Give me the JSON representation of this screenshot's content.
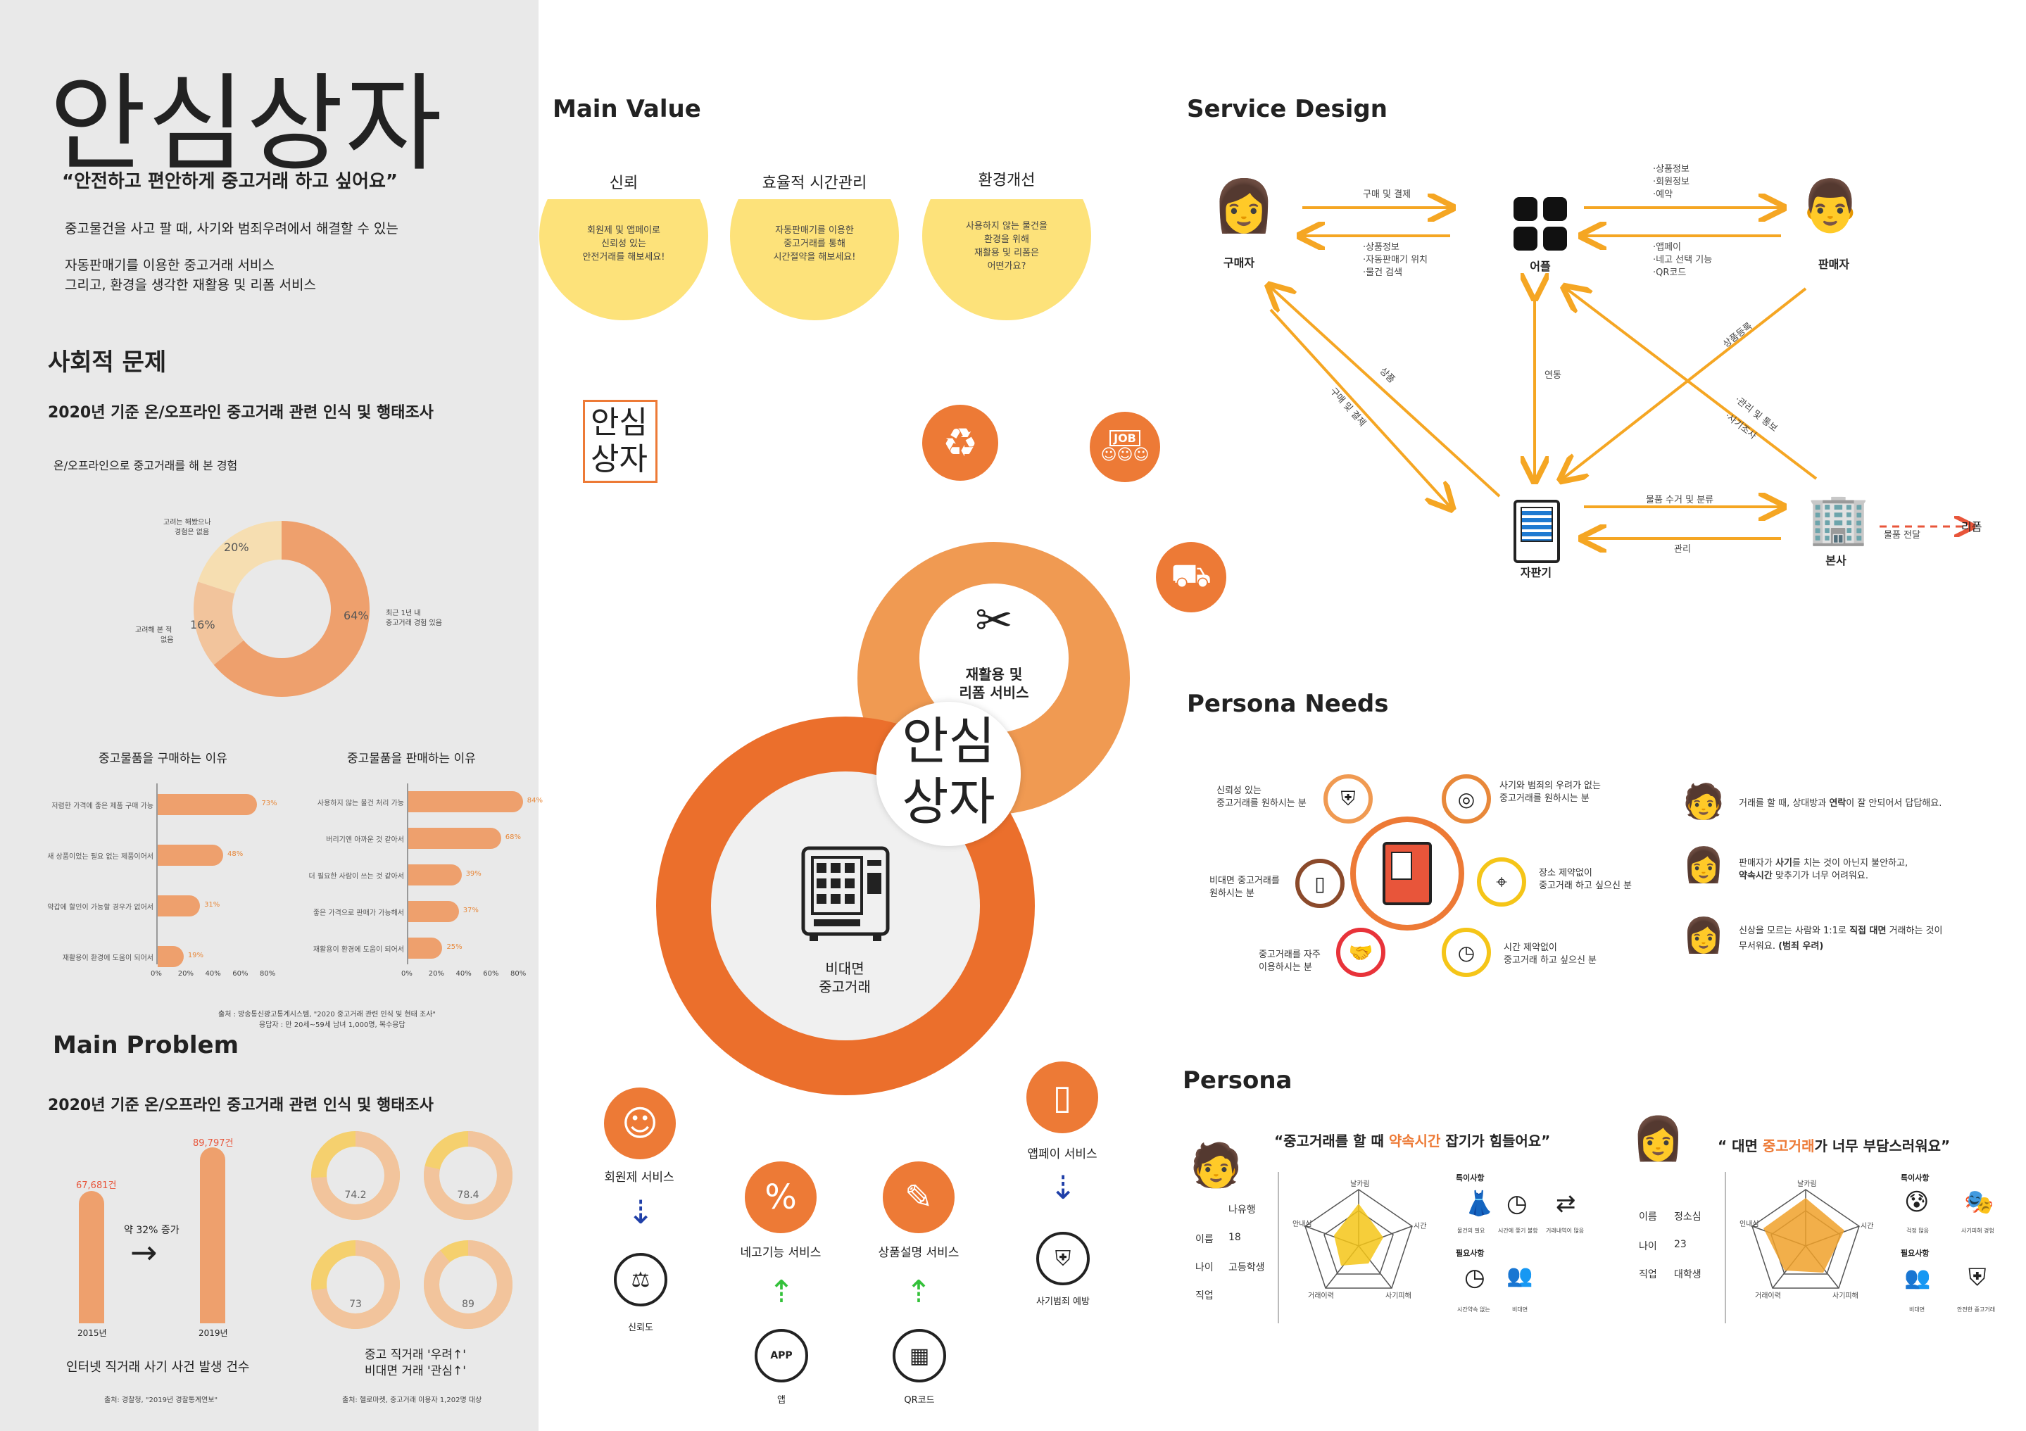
{
  "sidebar": {
    "title": "안심상자",
    "slogan": "“안전하고 편안하게 중고거래 하고 싶어요”",
    "desc1": "중고물건을 사고 팔 때, 사기와 범죄우려에서 해결할 수 있는",
    "desc2": "자동판매기를 이용한 중고거래 서비스",
    "desc3": "그리고,  환경을 생각한 재활용 및 리폼 서비스",
    "social_title": "사회적 문제",
    "survey_title": "2020년 기준 온/오프라인 중고거래 관련 인식 및 행태조사",
    "donut_title": "온/오프라인으로 중고거래를 해 본 경험",
    "donut": {
      "segments": [
        {
          "label": "최근 1년 내 중고거래 경험 있음",
          "value": 64,
          "text": "64%",
          "color": "#eea06d"
        },
        {
          "label": "고려해 본 적 없음",
          "value": 16,
          "text": "16%",
          "color": "#f2c49c"
        },
        {
          "label": "고려는 해봤으나 경험은 없음",
          "value": 20,
          "text": "20%",
          "color": "#f6deb1"
        }
      ],
      "label_right1": "최근 1년 내",
      "label_right2": "중고거래 경험 있음",
      "label_left1": "고려해 본 적",
      "label_left2": "없음",
      "label_top1": "고려는 해봤으나",
      "label_top2": "경험은 없음"
    },
    "buy_title": "중고물품을 구매하는 이유",
    "sell_title": "중고물품을 판매하는 이유",
    "axis_ticks": [
      "0%",
      "20%",
      "40%",
      "60%",
      "80%"
    ],
    "source1": "출처 : 방송통신광고통계시스템, \"2020 중고거래 관련 인식 및 현태 조사\"",
    "source2": "응답자 : 만 20세~59세 남녀 1,000명, 복수응답",
    "problem_title": "Main Problem",
    "problem_survey": "2020년 기준 온/오프라인 중고거래 관련 인식 및 행태조사",
    "fraud": {
      "y2015_value": "67,681건",
      "y2019_value": "89,797건",
      "y2015": "2015년",
      "y2019": "2019년",
      "increase": "약 32% 증가",
      "arrow": "→",
      "caption": "인터넷 직거래 사기 사건 발생 건수",
      "source": "출처: 경찰청, \"2019년 경찰통계연보\""
    },
    "concern": {
      "caption1": "중고 직거래 '우려↑'",
      "caption2": "비대면 거래 '관심↑'",
      "source": "출처: 헬로마켓, 중고거래 이용자 1,202명 대상",
      "values": [
        "74.2",
        "78.4",
        "73",
        "89"
      ]
    }
  },
  "chart_data": [
    {
      "type": "pie",
      "title": "온/오프라인으로 중고거래를 해 본 경험",
      "labels": [
        "최근 1년 내 중고거래 경험 있음",
        "고려해 본 적 없음",
        "고려는 해봤으나 경험은 없음"
      ],
      "values": [
        64,
        16,
        20
      ]
    },
    {
      "type": "bar",
      "title": "중고물품을 구매하는 이유",
      "categories": [
        "저렴한 가격에 좋은 제품 구매 가능",
        "새 상품이었는 필요 없는 제품이어서",
        "약갑에 할인이 가능할 경우가 없어서",
        "재활용이 환경에 도움이 되어서"
      ],
      "values": [
        73,
        48,
        31,
        19
      ],
      "xlim": [
        0,
        80
      ]
    },
    {
      "type": "bar",
      "title": "중고물품을 판매하는 이유",
      "categories": [
        "사용하지 않는 물건 처리 가능",
        "버리기엔 아까운 것 같아서",
        "더 필요한 사람이 쓰는 것 같아서",
        "좋은 가격으로 판매가 가능해서",
        "재활용이 환경에 도움이 되어서"
      ],
      "values": [
        84,
        68,
        39,
        37,
        25
      ],
      "xlim": [
        0,
        80
      ]
    },
    {
      "type": "bar",
      "title": "인터넷 직거래 사기 사건 발생 건수",
      "categories": [
        "2015년",
        "2019년"
      ],
      "values": [
        67681,
        89797
      ]
    }
  ],
  "main_value": {
    "title": "Main Value",
    "items": [
      {
        "title": "신뢰",
        "l1": "회원제 및 앱페이로",
        "l2": "신뢰성 있는",
        "l3": "안전거래를 해보세요!",
        "l4": ""
      },
      {
        "title": "효율적 시간관리",
        "l1": "자동판매기를 이용한",
        "l2": "중고거래를 통해",
        "l3": "시간절약을 해보세요!",
        "l4": ""
      },
      {
        "title": "환경개선",
        "l1": "사용하지 않는 물건을",
        "l2": "환경을 위해",
        "l3": "재활용 및 리폼은",
        "l4": "어떤가요?"
      }
    ]
  },
  "center": {
    "logo1": "안심",
    "logo2": "상자",
    "center1": "안심",
    "center2": "상자",
    "reuse1": "재활용 및",
    "reuse2": "리폼 서비스",
    "noncontact1": "비대면",
    "noncontact2": "중고거래",
    "services": [
      {
        "label": "회원제 서비스",
        "result": "신뢰도"
      },
      {
        "label": "네고기능 서비스",
        "source": "앱"
      },
      {
        "label": "상품설명 서비스",
        "source": "QR코드"
      },
      {
        "label": "앱페이 서비스",
        "result": "사기범죄 예방"
      }
    ],
    "job_text": "JOB"
  },
  "service_design": {
    "title": "Service Design",
    "nodes": {
      "buyer": "구매자",
      "app": "어플",
      "seller": "판매자",
      "vending": "자판기",
      "hq": "본사",
      "reform": "리폼"
    },
    "flows": {
      "buy_pay": "구매 및 결제",
      "buyer_info1": "·상품정보",
      "buyer_info2": "·자동판매기 위치",
      "buyer_info3": "·물건 검색",
      "seller_info1": "·상품정보",
      "seller_info2": "·회원정보",
      "seller_info3": "·예약",
      "seller_back1": "·앱페이",
      "seller_back2": "·네고 선택 기능",
      "seller_back3": "·QR코드",
      "link": "연동",
      "product": "상품",
      "buy_pay2": "구매 및 결제",
      "register": "상품등록",
      "manage1": "·관리 및 통보",
      "manage2": "·사기조사",
      "collect": "물품 수거 및 분류",
      "manage": "관리",
      "deliver": "물품 전달"
    }
  },
  "persona_needs": {
    "title": "Persona Needs",
    "needs": [
      "신뢰성 있는|중고거래를 원하시는 분",
      "사기와 범죄의 우려가 없는|중고거래를 원하시는 분",
      "비대면 중고거래를|원하시는 분",
      "장소 제약없이|중고거래 하고 싶으신 분",
      "중고거래를 자주|이용하시는 분",
      "시간 제약없이|중고거래 하고 싶으신 분"
    ],
    "quotes": [
      {
        "pre": "거래를 할 때, 상대방과 ",
        "bold": "연락",
        "post": "이 잘 안되어서 답답해요.",
        "pre2": "",
        "bold2": "",
        "post2": ""
      },
      {
        "pre": "판매자가 ",
        "bold": "사기",
        "post": "를 치는 것이 아닌지 불안하고,",
        "pre2": "",
        "bold2": "약속시간",
        "post2": " 맞추기가 너무 어려워요."
      },
      {
        "pre": "신상을 모르는 사람와 1:1로 ",
        "bold": "직접 대면",
        "post": " 거래하는 것이",
        "pre2": "무서워요. ",
        "bold2": "(범죄 우려)",
        "post2": ""
      }
    ]
  },
  "persona": {
    "title": "Persona",
    "p1": {
      "quote_pre": "“중고거래를 할 때 ",
      "quote_hl": "약속시간",
      "quote_post": " 잡기가 힘들어요”",
      "name_label": "이름",
      "name": "나유행",
      "age_label": "나이",
      "age": "18",
      "job_label": "직업",
      "job": "고등학생",
      "radar": [
        "날카림",
        "시간",
        "사기피해",
        "거래이력",
        "안내심"
      ],
      "char_title": "특이사항",
      "char": [
        "물건의 필요",
        "시간에 쫓기 불함",
        "거래내역이 많음"
      ],
      "need_title": "필요사항",
      "need": [
        "시간약속 없는",
        "비대면"
      ]
    },
    "p2": {
      "quote_pre": "“ 대면 ",
      "quote_hl": "중고거래",
      "quote_post": "가 너무 부담스러워요”",
      "name_label": "이름",
      "name": "정소심",
      "age_label": "나이",
      "age": "23",
      "job_label": "직업",
      "job": "대학생",
      "radar": [
        "날카림",
        "시간",
        "사기피해",
        "거래이력",
        "인내심"
      ],
      "char_title": "특이사항",
      "char": [
        "걱정 많음",
        "사기피해 경험"
      ],
      "need_title": "필요사항",
      "need": [
        "비대면",
        "안전한 중고거래"
      ]
    }
  },
  "colors": {
    "orange": "#ed7a36",
    "light_orange": "#eea06d",
    "yellow": "#fde27a",
    "flow": "#f5a623",
    "navy": "#1f3fa8",
    "green": "#34c13a",
    "red": "#e8553a"
  }
}
